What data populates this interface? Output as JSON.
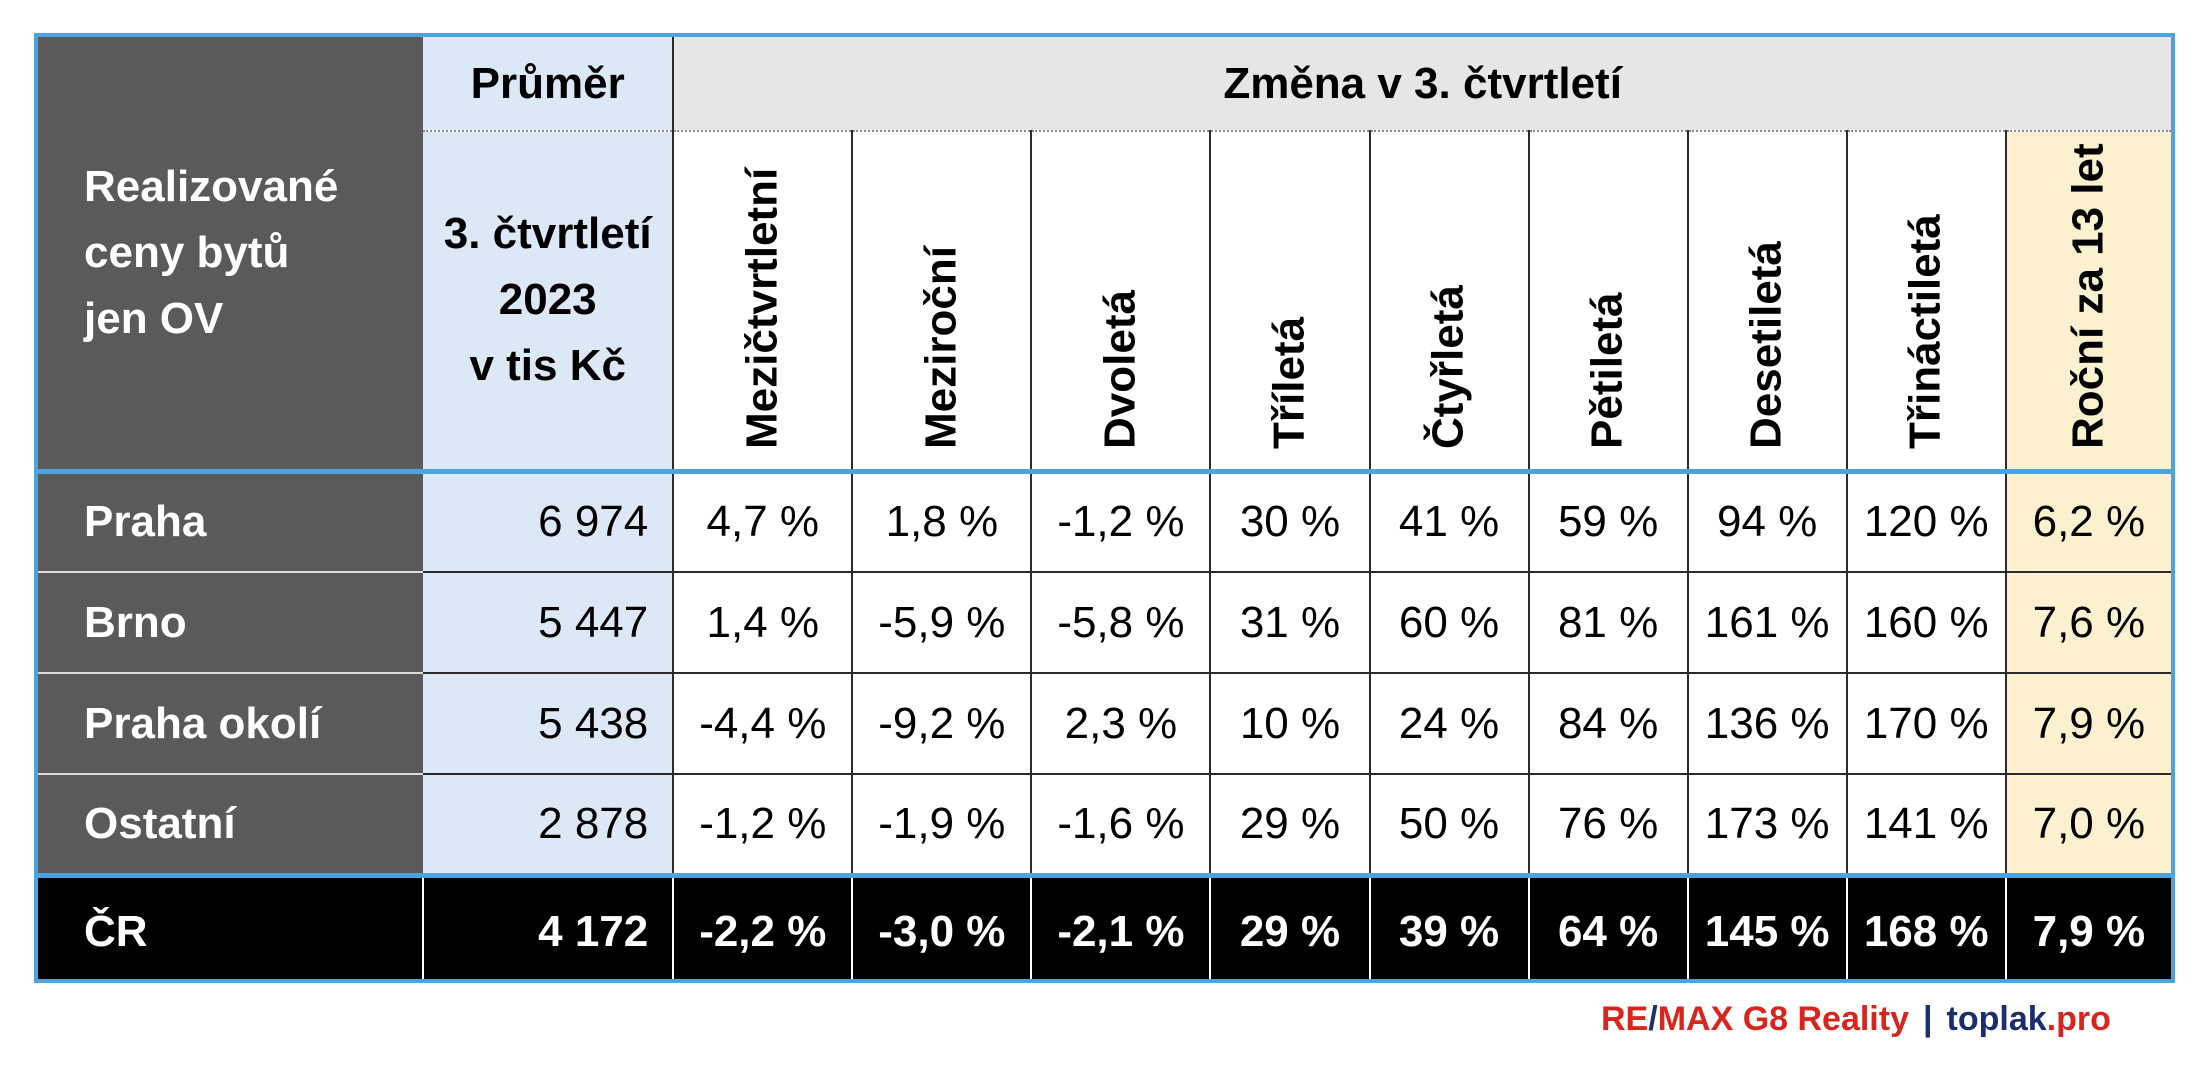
{
  "table": {
    "corner_lines": [
      "Realizované",
      "ceny bytů",
      "jen OV"
    ],
    "avg_header": "Průměr",
    "avg_sub_lines": [
      "3. čtvrtletí",
      "2023",
      "v tis Kč"
    ],
    "change_header": "Změna v 3. čtvrtletí",
    "columns": [
      "Mezičtvrtletní",
      "Meziroční",
      "Dvoletá",
      "Tříletá",
      "Čtyřletá",
      "Pětiletá",
      "Desetiletá",
      "Třináctiletá",
      "Roční za 13 let"
    ],
    "rows": [
      {
        "label": "Praha",
        "avg": "6 974",
        "values": [
          "4,7 %",
          "1,8 %",
          "-1,2 %",
          "30 %",
          "41 %",
          "59 %",
          "94 %",
          "120 %",
          "6,2 %"
        ]
      },
      {
        "label": "Brno",
        "avg": "5 447",
        "values": [
          "1,4 %",
          "-5,9 %",
          "-5,8 %",
          "31 %",
          "60 %",
          "81 %",
          "161 %",
          "160 %",
          "7,6 %"
        ]
      },
      {
        "label": "Praha okolí",
        "avg": "5 438",
        "values": [
          "-4,4 %",
          "-9,2 %",
          "2,3 %",
          "10 %",
          "24 %",
          "84 %",
          "136 %",
          "170 %",
          "7,9 %"
        ]
      },
      {
        "label": "Ostatní",
        "avg": "2 878",
        "values": [
          "-1,2 %",
          "-1,9 %",
          "-1,6 %",
          "29 %",
          "50 %",
          "76 %",
          "173 %",
          "141 %",
          "7,0 %"
        ]
      }
    ],
    "total": {
      "label": "ČR",
      "avg": "4 172",
      "values": [
        "-2,2 %",
        "-3,0 %",
        "-2,1 %",
        "29 %",
        "39 %",
        "64 %",
        "145 %",
        "168 %",
        "7,9 %"
      ]
    }
  },
  "footer": {
    "brand_re": "RE",
    "brand_slash": "/",
    "brand_rest": "MAX G8 Reality",
    "separator": "|",
    "domain_main": "toplak",
    "domain_tld": ".pro"
  },
  "colors": {
    "border_blue": "#4da3de",
    "row_label_gray": "#5a5a5a",
    "avg_blue": "#dce8f6",
    "header_gray": "#e6e6e6",
    "highlight_yellow": "#fcf1cf",
    "brand_red": "#d7261e",
    "brand_navy": "#1a2e6e"
  }
}
